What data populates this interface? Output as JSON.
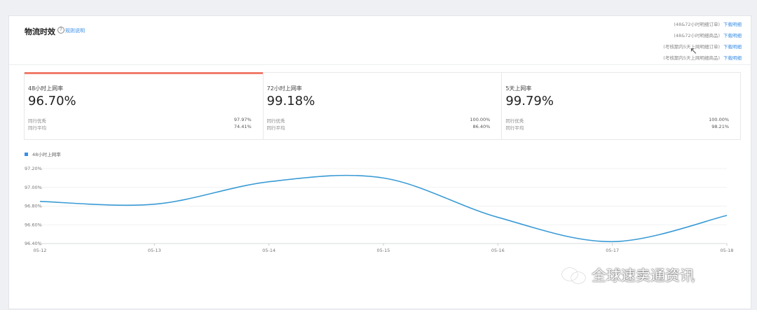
{
  "header": {
    "title": "物流时效",
    "rule_link": "规则说明"
  },
  "downloads": [
    {
      "label": "(48&72小时明细订单)",
      "link": "下载明细"
    },
    {
      "label": "(48&72小时明细商品)",
      "link": "下载明细"
    },
    {
      "label": "(考核期内5天上网明细订单)",
      "link": "下载明细"
    },
    {
      "label": "(考核期内5天上网明细商品)",
      "link": "下载明细"
    }
  ],
  "metrics": [
    {
      "label": "48小时上网率",
      "value": "96.70%",
      "excellent_label": "同行优秀",
      "excellent": "97.97%",
      "average_label": "同行平均",
      "average": "74.41%"
    },
    {
      "label": "72小时上网率",
      "value": "99.18%",
      "excellent_label": "同行优秀",
      "excellent": "100.00%",
      "average_label": "同行平均",
      "average": "86.40%"
    },
    {
      "label": "5天上网率",
      "value": "99.79%",
      "excellent_label": "同行优秀",
      "excellent": "100.00%",
      "average_label": "同行平均",
      "average": "98.21%"
    }
  ],
  "chart_data": {
    "type": "line",
    "series": [
      {
        "name": "48小时上网率",
        "x": [
          "05-12",
          "05-13",
          "05-14",
          "05-15",
          "05-16",
          "05-17",
          "05-18"
        ],
        "values": [
          96.85,
          96.82,
          97.06,
          97.1,
          96.68,
          96.42,
          96.7
        ]
      }
    ],
    "categories": [
      "05-12",
      "05-13",
      "05-14",
      "05-15",
      "05-16",
      "05-17",
      "05-18"
    ],
    "ytick_labels": [
      "97.20%",
      "97.00%",
      "96.80%",
      "96.60%",
      "96.40%"
    ],
    "yticks": [
      97.2,
      97.0,
      96.8,
      96.6,
      96.4
    ],
    "ylim": [
      96.4,
      97.2
    ],
    "grid": true,
    "color": "#3a9bd5"
  },
  "watermark": "全球速卖通资讯"
}
